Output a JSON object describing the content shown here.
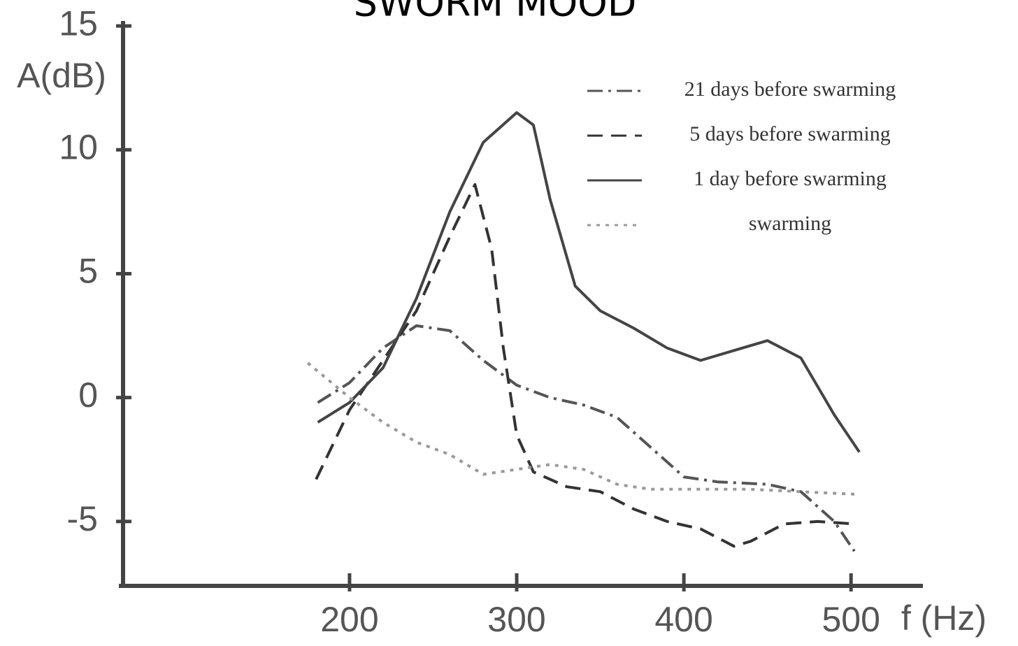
{
  "chart_data": {
    "type": "line",
    "title": "SWORM MOOD",
    "x_label": "f (Hz)",
    "y_label": "A(dB)",
    "xlim": [
      62,
      543
    ],
    "ylim": [
      -7.6,
      15.2
    ],
    "xticks": [
      200,
      300,
      400,
      500
    ],
    "yticks": [
      15,
      10,
      5,
      0,
      -5
    ],
    "series": [
      {
        "name": "21 days before swarming",
        "color": "#555555",
        "style": "dash-dot",
        "x": [
          181,
          200,
          220,
          240,
          260,
          280,
          300,
          320,
          340,
          360,
          380,
          400,
          420,
          450,
          470,
          490,
          502
        ],
        "values": [
          -0.2,
          0.6,
          2.0,
          2.9,
          2.7,
          1.5,
          0.5,
          0,
          -0.3,
          -0.8,
          -2.0,
          -3.2,
          -3.4,
          -3.5,
          -3.8,
          -5.0,
          -6.2
        ]
      },
      {
        "name": "5 days before swarming",
        "color": "#333333",
        "style": "dashed",
        "x": [
          180,
          200,
          220,
          240,
          260,
          275,
          285,
          292,
          300,
          310,
          330,
          350,
          370,
          390,
          410,
          430,
          440,
          460,
          480,
          502
        ],
        "values": [
          -3.3,
          -0.5,
          1.5,
          3.5,
          6.5,
          8.6,
          6.0,
          2.0,
          -1.5,
          -3.0,
          -3.6,
          -3.8,
          -4.5,
          -5.0,
          -5.3,
          -6.0,
          -5.8,
          -5.1,
          -5.0,
          -5.1
        ]
      },
      {
        "name": "1 day before swarming",
        "color": "#444444",
        "style": "solid",
        "x": [
          181,
          200,
          220,
          240,
          260,
          280,
          300,
          310,
          320,
          335,
          350,
          370,
          390,
          410,
          430,
          450,
          470,
          490,
          505
        ],
        "values": [
          -1.0,
          -0.2,
          1.2,
          4.0,
          7.5,
          10.3,
          11.5,
          11.0,
          8.0,
          4.5,
          3.5,
          2.8,
          2.0,
          1.5,
          1.9,
          2.3,
          1.6,
          -0.7,
          -2.2
        ]
      },
      {
        "name": "swarming",
        "color": "#999999",
        "style": "dotted",
        "x": [
          175,
          200,
          220,
          240,
          260,
          280,
          300,
          320,
          340,
          360,
          380,
          400,
          440,
          470,
          502
        ],
        "values": [
          1.4,
          0,
          -1.0,
          -1.8,
          -2.3,
          -3.1,
          -2.9,
          -2.7,
          -2.9,
          -3.5,
          -3.7,
          -3.7,
          -3.7,
          -3.8,
          -3.9
        ]
      }
    ]
  }
}
